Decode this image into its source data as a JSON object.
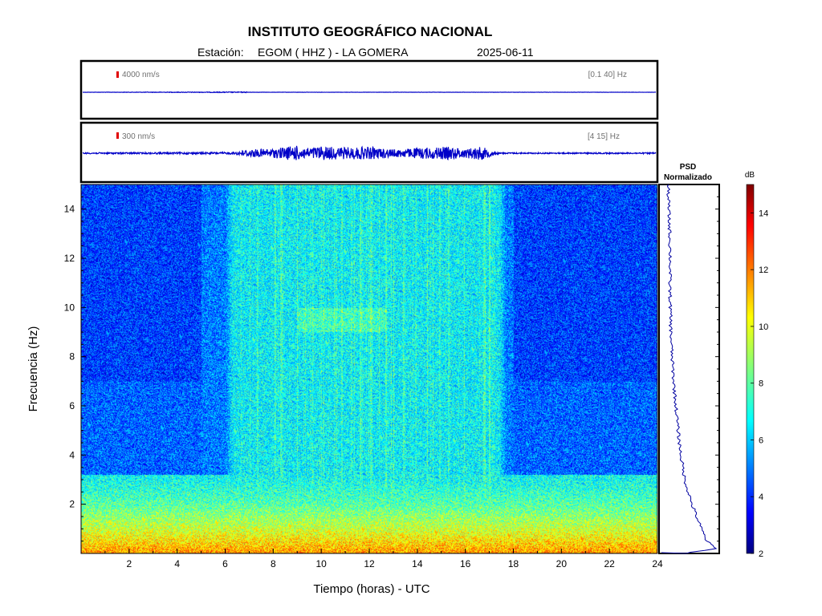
{
  "header": {
    "title": "INSTITUTO GEOGRÁFICO NACIONAL",
    "station_label": "Estación:",
    "station": "EGOM ( HHZ ) - LA GOMERA",
    "date": "2025-06-11"
  },
  "chart_data": [
    {
      "type": "line",
      "name": "seismogram-band-1",
      "scale_label": "4000 nm/s",
      "band_label": "[0.1 40] Hz",
      "x_range": [
        0,
        24
      ],
      "trace_color": "#0000c8",
      "scale_color": "#e00000",
      "amplitude_profile": [
        {
          "x": 0,
          "y": 0.01
        },
        {
          "x": 7.0,
          "y": 0.04
        },
        {
          "x": 7.05,
          "y": 0.01
        },
        {
          "x": 24,
          "y": 0.01
        }
      ]
    },
    {
      "type": "line",
      "name": "seismogram-band-2",
      "scale_label": "300 nm/s",
      "band_label": "[4 15] Hz",
      "x_range": [
        0,
        24
      ],
      "trace_color": "#0000c8",
      "scale_color": "#e00000",
      "amplitude_profile": [
        {
          "x": 0,
          "y": 0.05
        },
        {
          "x": 6.3,
          "y": 0.08
        },
        {
          "x": 7.0,
          "y": 0.3
        },
        {
          "x": 8.0,
          "y": 0.35
        },
        {
          "x": 8.9,
          "y": 0.6
        },
        {
          "x": 9.5,
          "y": 0.4
        },
        {
          "x": 10.0,
          "y": 0.55
        },
        {
          "x": 11.0,
          "y": 0.45
        },
        {
          "x": 12.0,
          "y": 0.5
        },
        {
          "x": 13.0,
          "y": 0.3
        },
        {
          "x": 14.5,
          "y": 0.45
        },
        {
          "x": 15.3,
          "y": 0.5
        },
        {
          "x": 16.0,
          "y": 0.35
        },
        {
          "x": 16.6,
          "y": 0.55
        },
        {
          "x": 17.0,
          "y": 0.3
        },
        {
          "x": 17.4,
          "y": 0.05
        },
        {
          "x": 24,
          "y": 0.05
        }
      ]
    },
    {
      "type": "heatmap",
      "name": "spectrogram",
      "xlabel": "Tiempo (horas) - UTC",
      "ylabel": "Frecuencia  (Hz)",
      "xlim": [
        0,
        24
      ],
      "ylim": [
        0,
        15
      ],
      "xticks": [
        2,
        4,
        6,
        8,
        10,
        12,
        14,
        16,
        18,
        20,
        22,
        24
      ],
      "yticks": [
        2,
        4,
        6,
        8,
        10,
        12,
        14
      ],
      "value_range_db": [
        2,
        15
      ],
      "active_hours": [
        6.3,
        17.4
      ],
      "description_profile": {
        "background_db": 5.2,
        "active_db": 6.8,
        "low_freq_db": [
          {
            "f": 0.0,
            "db": 11.5
          },
          {
            "f": 0.5,
            "db": 10.5
          },
          {
            "f": 1.0,
            "db": 9.5
          },
          {
            "f": 2.0,
            "db": 8.0
          },
          {
            "f": 3.0,
            "db": 7.0
          }
        ]
      }
    },
    {
      "type": "line",
      "name": "psd-normalized",
      "title_lines": [
        "PSD",
        "Normalizado"
      ],
      "xlim": [
        0,
        1
      ],
      "ylim": [
        0,
        15
      ],
      "line_color": "#0000a0",
      "points": [
        {
          "f": 15.0,
          "v": 0.12
        },
        {
          "f": 14.0,
          "v": 0.13
        },
        {
          "f": 13.0,
          "v": 0.15
        },
        {
          "f": 12.0,
          "v": 0.16
        },
        {
          "f": 11.0,
          "v": 0.15
        },
        {
          "f": 10.0,
          "v": 0.16
        },
        {
          "f": 9.0,
          "v": 0.17
        },
        {
          "f": 8.0,
          "v": 0.19
        },
        {
          "f": 7.0,
          "v": 0.22
        },
        {
          "f": 6.0,
          "v": 0.26
        },
        {
          "f": 5.0,
          "v": 0.3
        },
        {
          "f": 4.0,
          "v": 0.35
        },
        {
          "f": 3.0,
          "v": 0.42
        },
        {
          "f": 2.0,
          "v": 0.55
        },
        {
          "f": 1.0,
          "v": 0.72
        },
        {
          "f": 0.5,
          "v": 0.82
        },
        {
          "f": 0.2,
          "v": 0.98
        },
        {
          "f": 0.05,
          "v": 0.55
        },
        {
          "f": 0.0,
          "v": 0.45
        }
      ]
    },
    {
      "type": "heatmap",
      "name": "colorbar",
      "unit_label": "dB",
      "ticks": [
        2,
        4,
        6,
        8,
        10,
        12,
        14
      ],
      "range": [
        2,
        15
      ],
      "colormap": "jet"
    }
  ]
}
